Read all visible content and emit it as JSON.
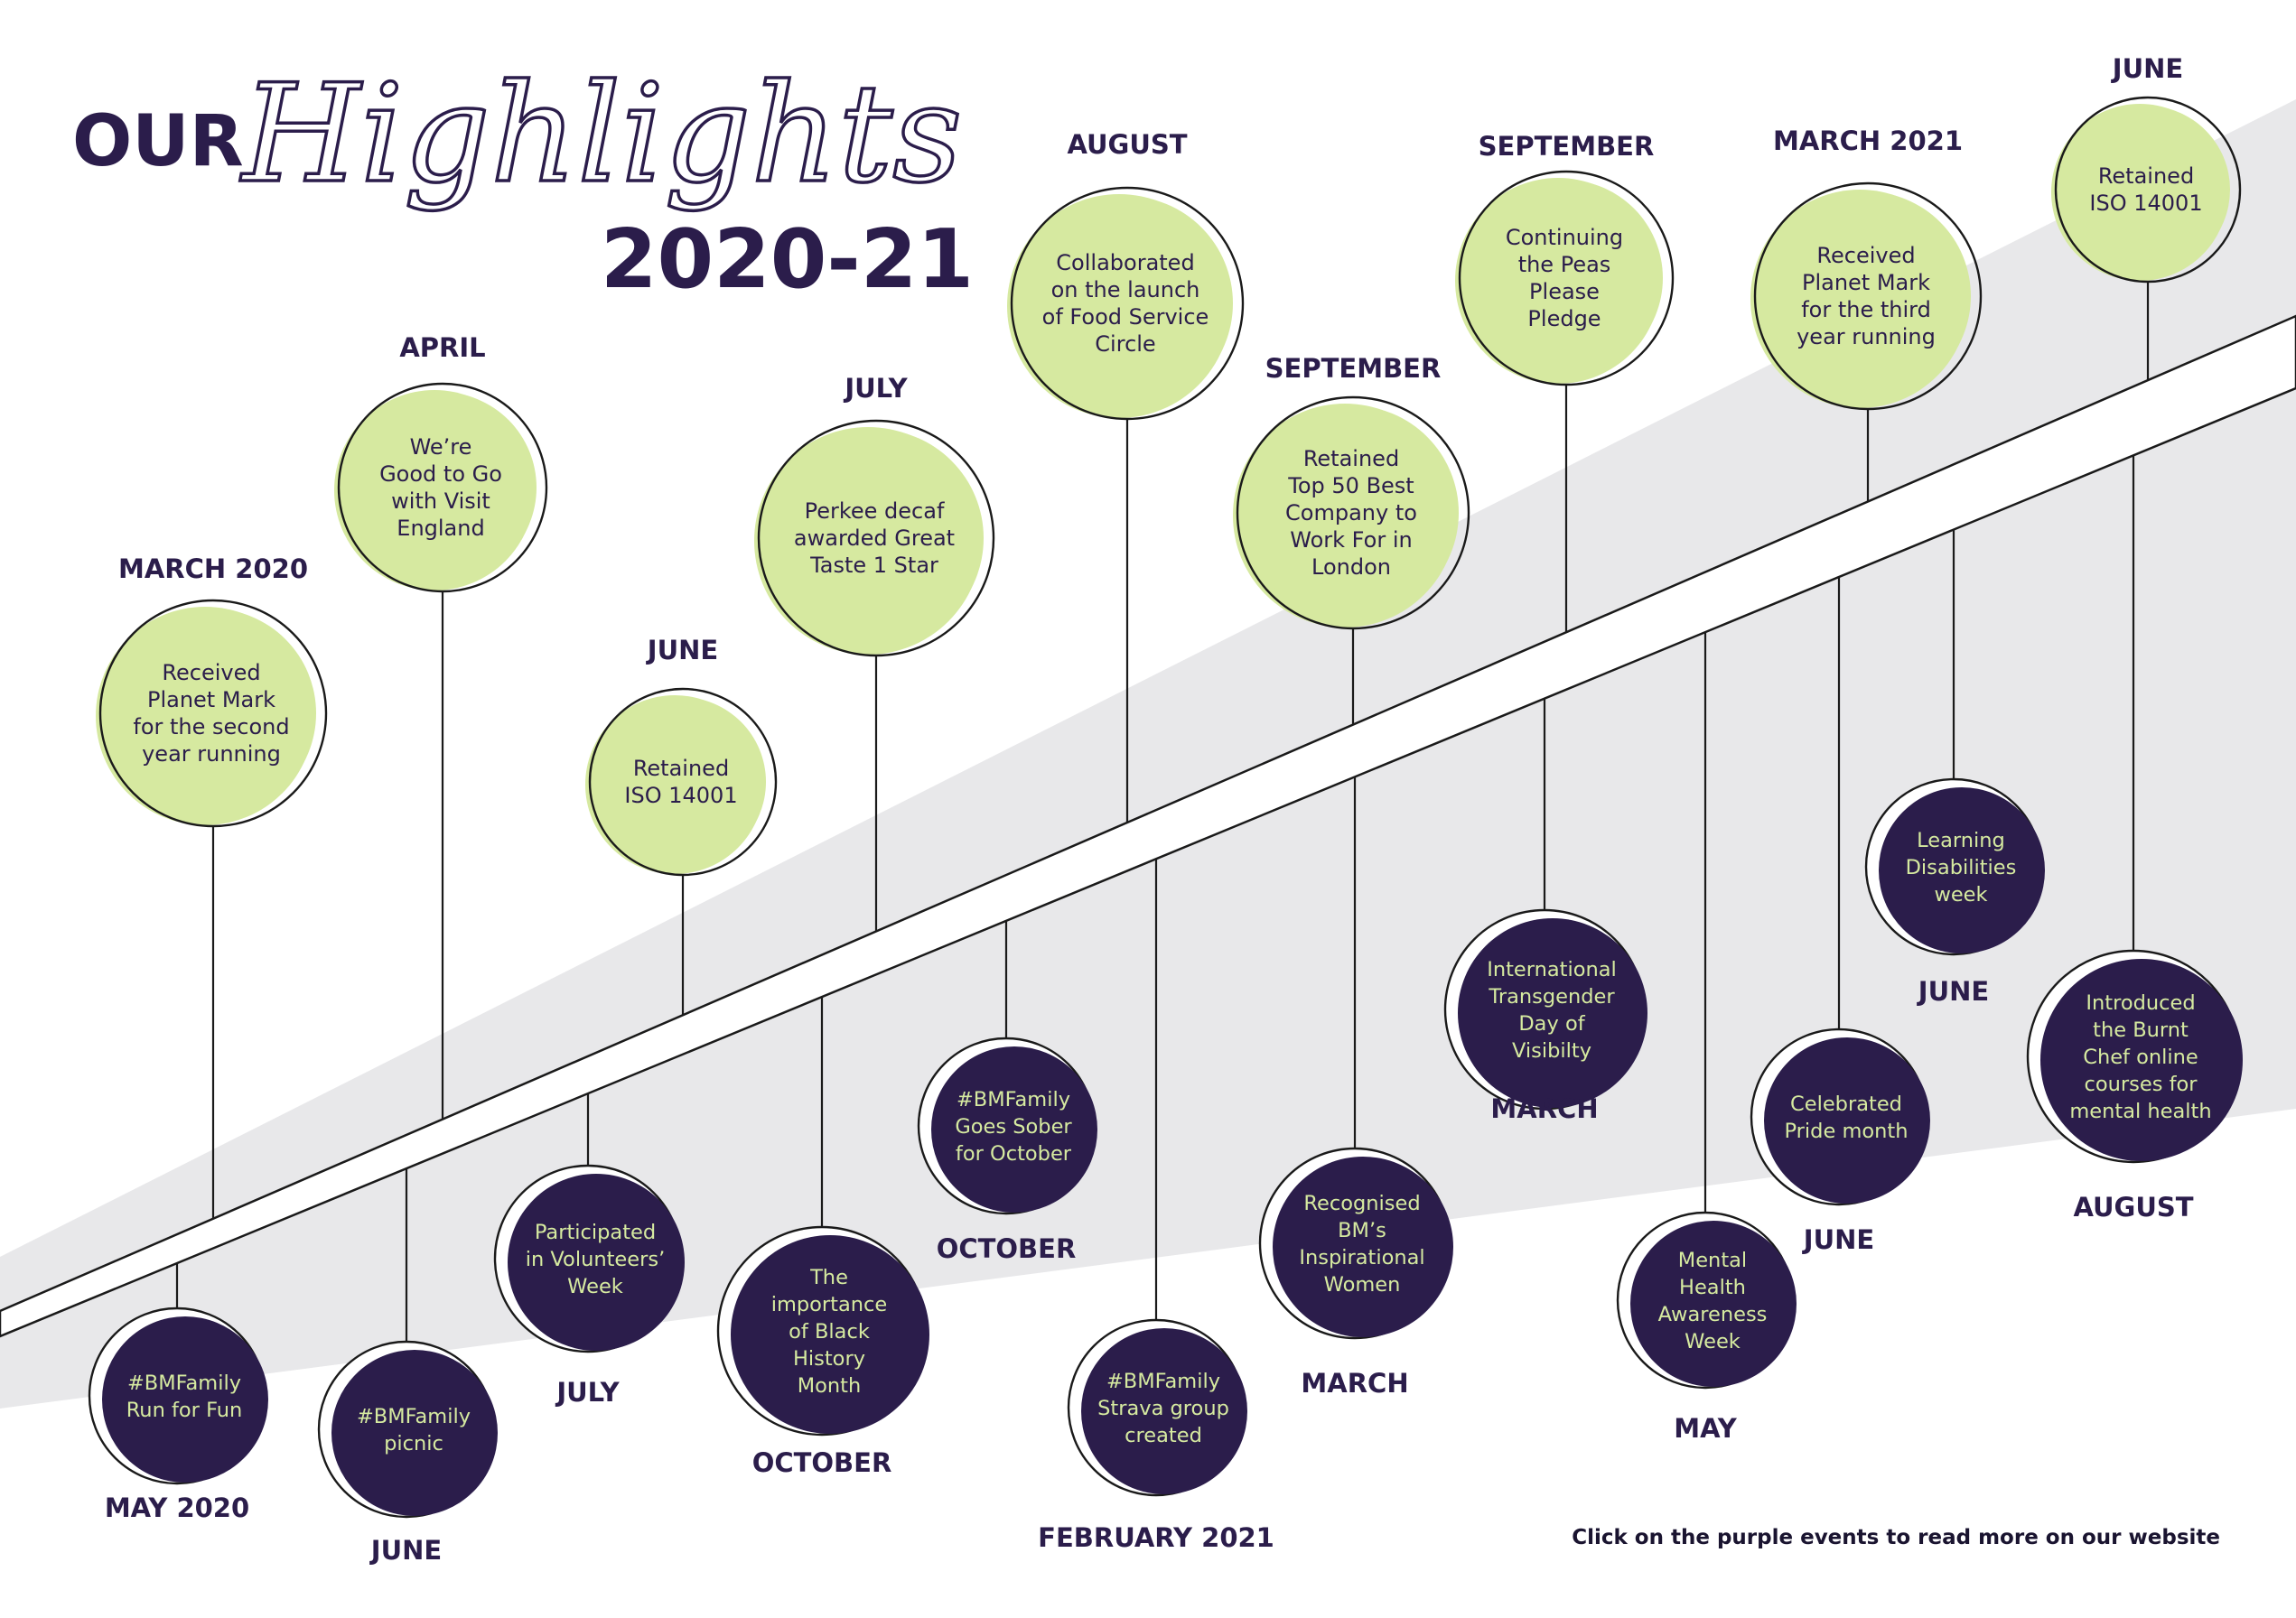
{
  "header": {
    "our": "OUR",
    "highlights": "Highlights",
    "years": "2020-21"
  },
  "colors": {
    "navy": "#2b1d4b",
    "green": "#d6e9a0",
    "purple": "#2b1d4b",
    "band": "#e8e8ea"
  },
  "upper_events": [
    {
      "month": "MARCH 2020",
      "lines": [
        "Received",
        "Planet Mark",
        "for the second",
        "year running"
      ]
    },
    {
      "month": "APRIL",
      "lines": [
        "We’re",
        "Good to Go",
        "with Visit",
        "England"
      ]
    },
    {
      "month": "JUNE",
      "lines": [
        "Retained",
        "ISO 14001"
      ]
    },
    {
      "month": "JULY",
      "lines": [
        "Perkee decaf",
        "awarded Great",
        "Taste 1 Star"
      ]
    },
    {
      "month": "AUGUST",
      "lines": [
        "Collaborated",
        "on the launch",
        "of Food Service",
        "Circle"
      ]
    },
    {
      "month": "SEPTEMBER",
      "lines": [
        "Retained",
        "Top 50 Best",
        "Company to",
        "Work For in",
        "London"
      ]
    },
    {
      "month": "SEPTEMBER",
      "lines": [
        "Continuing",
        "the Peas",
        "Please",
        "Pledge"
      ]
    },
    {
      "month": "MARCH 2021",
      "lines": [
        "Received",
        "Planet Mark",
        "for the third",
        "year running"
      ]
    },
    {
      "month": "JUNE",
      "lines": [
        "Retained",
        "ISO 14001"
      ]
    }
  ],
  "lower_events": [
    {
      "month": "MAY 2020",
      "lines": [
        "#BMFamily",
        "Run for Fun"
      ]
    },
    {
      "month": "JUNE",
      "lines": [
        "#BMFamily",
        "picnic"
      ]
    },
    {
      "month": "JULY",
      "lines": [
        "Participated",
        "in Volunteers’",
        "Week"
      ]
    },
    {
      "month": "OCTOBER",
      "lines": [
        "The",
        "importance",
        "of Black",
        "History",
        "Month"
      ]
    },
    {
      "month": "OCTOBER",
      "lines": [
        "#BMFamily",
        "Goes Sober",
        "for October"
      ]
    },
    {
      "month": "FEBRUARY 2021",
      "lines": [
        "#BMFamily",
        "Strava group",
        "created"
      ]
    },
    {
      "month": "MARCH",
      "lines": [
        "Recognised",
        "BM’s",
        "Inspirational",
        "Women"
      ]
    },
    {
      "month": "MARCH",
      "lines": [
        "International",
        "Transgender",
        "Day of",
        "Visibilty"
      ]
    },
    {
      "month": "MAY",
      "lines": [
        "Mental",
        "Health",
        "Awareness",
        "Week"
      ]
    },
    {
      "month": "JUNE",
      "lines": [
        "Celebrated",
        "Pride month"
      ]
    },
    {
      "month": "JUNE",
      "lines": [
        "Learning",
        "Disabilities",
        "week"
      ]
    },
    {
      "month": "AUGUST",
      "lines": [
        "Introduced",
        "the Burnt",
        "Chef online",
        "courses for",
        "mental health"
      ]
    }
  ],
  "footer": {
    "note": "Click on the purple events to read more on our website"
  }
}
